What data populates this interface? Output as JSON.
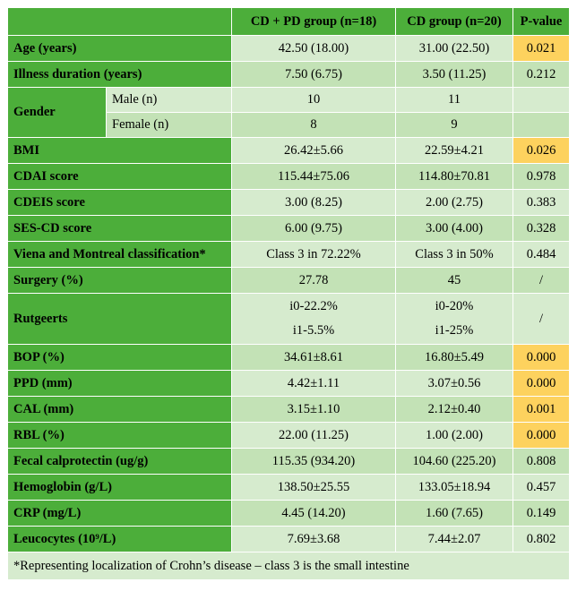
{
  "header": {
    "col1": "CD + PD group (n=18)",
    "col2": "CD group (n=20)",
    "col3": "P-value"
  },
  "rows": {
    "age": {
      "label": "Age (years)",
      "cd_pd": "42.50 (18.00)",
      "cd": "31.00 (22.50)",
      "p": "0.021"
    },
    "illness": {
      "label": "Illness duration (years)",
      "cd_pd": "7.50 (6.75)",
      "cd": "3.50 (11.25)",
      "p": "0.212"
    },
    "gender": {
      "label": "Gender",
      "male": {
        "label": "Male (n)",
        "cd_pd": "10",
        "cd": "11",
        "p": ""
      },
      "female": {
        "label": "Female (n)",
        "cd_pd": "8",
        "cd": "9",
        "p": ""
      }
    },
    "bmi": {
      "label": "BMI",
      "cd_pd": "26.42±5.66",
      "cd": "22.59±4.21",
      "p": "0.026"
    },
    "cdai": {
      "label": "CDAI score",
      "cd_pd": "115.44±75.06",
      "cd": "114.80±70.81",
      "p": "0.978"
    },
    "cdeis": {
      "label": "CDEIS score",
      "cd_pd": "3.00 (8.25)",
      "cd": "2.00 (2.75)",
      "p": "0.383"
    },
    "sescd": {
      "label": "SES-CD score",
      "cd_pd": "6.00 (9.75)",
      "cd": "3.00 (4.00)",
      "p": "0.328"
    },
    "viena": {
      "label": "Viena and Montreal classification*",
      "cd_pd": "Class 3 in 72.22%",
      "cd": "Class 3 in 50%",
      "p": "0.484"
    },
    "surgery": {
      "label": "Surgery (%)",
      "cd_pd": "27.78",
      "cd": "45",
      "p": "/"
    },
    "rutgeerts": {
      "label": "Rutgeerts",
      "cd_pd_1": "i0-22.2%",
      "cd_pd_2": "i1-5.5%",
      "cd_1": "i0-20%",
      "cd_2": "i1-25%",
      "p": "/"
    },
    "bop": {
      "label": "BOP (%)",
      "cd_pd": "34.61±8.61",
      "cd": "16.80±5.49",
      "p": "0.000"
    },
    "ppd": {
      "label": "PPD (mm)",
      "cd_pd": "4.42±1.11",
      "cd": "3.07±0.56",
      "p": "0.000"
    },
    "cal": {
      "label": "CAL (mm)",
      "cd_pd": "3.15±1.10",
      "cd": "2.12±0.40",
      "p": "0.001"
    },
    "rbl": {
      "label": "RBL (%)",
      "cd_pd": "22.00 (11.25)",
      "cd": "1.00 (2.00)",
      "p": "0.000"
    },
    "fecal": {
      "label": "Fecal calprotectin (ug/g)",
      "cd_pd": "115.35 (934.20)",
      "cd": "104.60 (225.20)",
      "p": "0.808"
    },
    "hemo": {
      "label": "Hemoglobin (g/L)",
      "cd_pd": "138.50±25.55",
      "cd": "133.05±18.94",
      "p": "0.457"
    },
    "crp": {
      "label": "CRP (mg/L)",
      "cd_pd": "4.45 (14.20)",
      "cd": "1.60 (7.65)",
      "p": "0.149"
    },
    "leuco": {
      "label": "Leucocytes (10⁹/L)",
      "cd_pd": "7.69±3.68",
      "cd": "7.44±2.07",
      "p": "0.802"
    }
  },
  "footnote": "*Representing localization of Crohn’s disease – class 3 is the small intestine",
  "colors": {
    "dark_green": "#4cae3a",
    "light_green": "#d6ebce",
    "mid_green": "#c3e2b6",
    "highlight": "#fdd25e"
  }
}
